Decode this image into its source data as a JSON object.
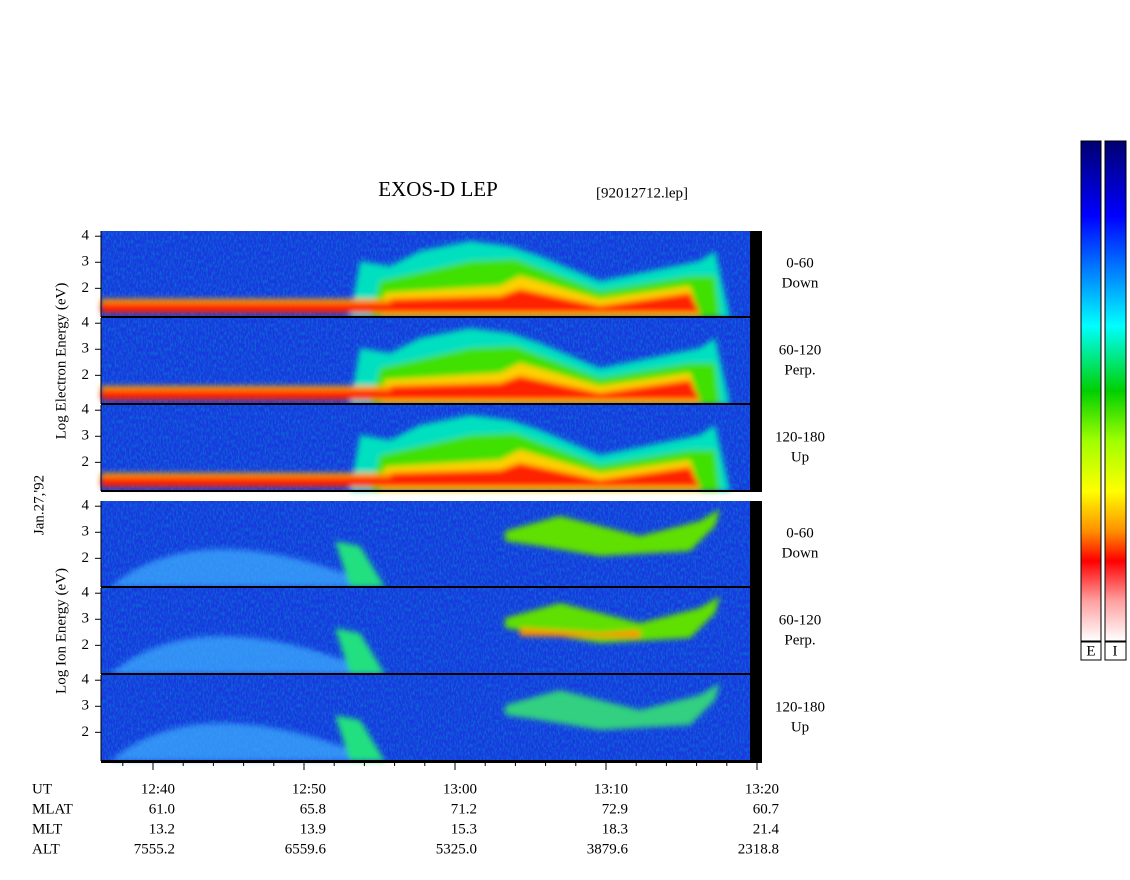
{
  "title": "EXOS-D LEP",
  "file": "[92012712.lep]",
  "chart_data": {
    "type": "spectrogram",
    "date": "Jan.27,'92",
    "groups": [
      {
        "ylabel": "Log Electron Energy (eV)",
        "panels": [
          {
            "label": "0-60",
            "sublabel": "Down"
          },
          {
            "label": "60-120",
            "sublabel": "Perp."
          },
          {
            "label": "120-180",
            "sublabel": "Up"
          }
        ]
      },
      {
        "ylabel": "Log Ion Energy (eV)",
        "panels": [
          {
            "label": "0-60",
            "sublabel": "Down"
          },
          {
            "label": "60-120",
            "sublabel": "Perp."
          },
          {
            "label": "120-180",
            "sublabel": "Up"
          }
        ]
      }
    ],
    "ylim": [
      0.9,
      4.2
    ],
    "yticks": [
      2,
      3,
      4
    ],
    "xlabel": "UT",
    "xticks": [
      "12:40",
      "12:50",
      "13:00",
      "13:10",
      "13:20"
    ],
    "ephemeris": [
      {
        "name": "MLAT",
        "values": [
          "61.0",
          "65.8",
          "71.2",
          "72.9",
          "60.7"
        ]
      },
      {
        "name": "MLT",
        "values": [
          "13.2",
          "13.9",
          "15.3",
          "18.3",
          "21.4"
        ]
      },
      {
        "name": "ALT",
        "values": [
          "7555.2",
          "6559.6",
          "5325.0",
          "3879.6",
          "2318.8"
        ]
      }
    ],
    "colorbars": [
      "E",
      "I"
    ]
  }
}
